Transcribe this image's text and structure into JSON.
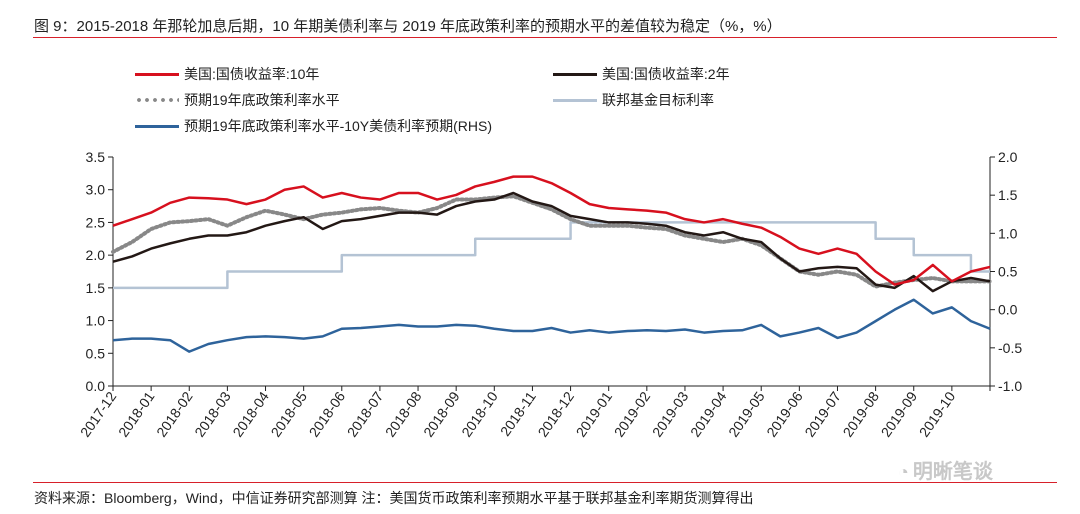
{
  "title": "图 9：2015-2018 年那轮加息后期，10 年期美债利率与 2019 年底政策利率的预期水平的差值较为稳定（%，%）",
  "source": "资料来源：Bloomberg，Wind，中信证券研究部测算  注：美国货币政策利率预期水平基于联邦基金利率期货测算得出",
  "watermark": "明晰笔谈",
  "chart_data": {
    "type": "line",
    "x_unit": "months since 2017-12",
    "xlim": [
      0,
      23
    ],
    "x_tick_labels": [
      "2017-12",
      "2018-01",
      "2018-02",
      "2018-03",
      "2018-04",
      "2018-05",
      "2018-06",
      "2018-07",
      "2018-08",
      "2018-09",
      "2018-10",
      "2018-11",
      "2018-12",
      "2019-01",
      "2019-02",
      "2019-03",
      "2019-04",
      "2019-05",
      "2019-06",
      "2019-07",
      "2019-08",
      "2019-09",
      "2019-10"
    ],
    "ylim_left": [
      0,
      3.5
    ],
    "ylim_right": [
      -1.0,
      2.0
    ],
    "y_ticks_left": [
      "0.0",
      "0.5",
      "1.0",
      "1.5",
      "2.0",
      "2.5",
      "3.0",
      "3.5"
    ],
    "y_ticks_right": [
      "-1.0",
      "-0.5",
      "0.0",
      "0.5",
      "1.0",
      "1.5",
      "2.0"
    ],
    "x": [
      0,
      0.5,
      1,
      1.5,
      2,
      2.5,
      3,
      3.5,
      4,
      4.5,
      5,
      5.5,
      6,
      6.5,
      7,
      7.5,
      8,
      8.5,
      9,
      9.5,
      10,
      10.5,
      11,
      11.5,
      12,
      12.5,
      13,
      13.5,
      14,
      14.5,
      15,
      15.5,
      16,
      16.5,
      17,
      17.5,
      18,
      18.5,
      19,
      19.5,
      20,
      20.5,
      21,
      21.5,
      22,
      22.5,
      23
    ],
    "series": [
      {
        "name": "美国:国债收益率:10年",
        "axis": "left",
        "color": "#d7101e",
        "style": "solid",
        "values": [
          2.45,
          2.55,
          2.65,
          2.8,
          2.88,
          2.87,
          2.85,
          2.78,
          2.85,
          3.0,
          3.05,
          2.88,
          2.95,
          2.88,
          2.85,
          2.95,
          2.95,
          2.85,
          2.92,
          3.05,
          3.12,
          3.2,
          3.2,
          3.1,
          2.95,
          2.78,
          2.72,
          2.7,
          2.68,
          2.65,
          2.55,
          2.5,
          2.55,
          2.48,
          2.42,
          2.28,
          2.1,
          2.02,
          2.1,
          2.02,
          1.75,
          1.55,
          1.62,
          1.85,
          1.6,
          1.75,
          1.82
        ]
      },
      {
        "name": "美国:国债收益率:2年",
        "axis": "left",
        "color": "#231815",
        "style": "solid",
        "values": [
          1.9,
          1.98,
          2.1,
          2.18,
          2.25,
          2.3,
          2.3,
          2.35,
          2.45,
          2.52,
          2.58,
          2.4,
          2.52,
          2.55,
          2.6,
          2.65,
          2.65,
          2.62,
          2.75,
          2.82,
          2.85,
          2.95,
          2.82,
          2.75,
          2.6,
          2.55,
          2.5,
          2.5,
          2.48,
          2.45,
          2.35,
          2.3,
          2.35,
          2.25,
          2.2,
          1.95,
          1.75,
          1.8,
          1.82,
          1.8,
          1.55,
          1.5,
          1.68,
          1.45,
          1.6,
          1.65,
          1.6
        ]
      },
      {
        "name": "预期19年底政策利率水平",
        "axis": "left",
        "color": "#888888",
        "style": "dotted",
        "values": [
          2.05,
          2.2,
          2.4,
          2.5,
          2.52,
          2.55,
          2.45,
          2.58,
          2.68,
          2.62,
          2.55,
          2.62,
          2.65,
          2.7,
          2.72,
          2.68,
          2.65,
          2.72,
          2.85,
          2.85,
          2.88,
          2.9,
          2.8,
          2.7,
          2.55,
          2.45,
          2.45,
          2.45,
          2.42,
          2.4,
          2.3,
          2.25,
          2.2,
          2.25,
          2.15,
          1.95,
          1.75,
          1.7,
          1.75,
          1.7,
          1.52,
          1.58,
          1.62,
          1.65,
          1.6,
          1.6,
          1.6
        ]
      },
      {
        "name": "联邦基金目标利率",
        "axis": "left",
        "color": "#b4c3d4",
        "style": "step",
        "values": [
          1.5,
          1.5,
          1.5,
          1.5,
          1.5,
          1.5,
          1.75,
          1.75,
          1.75,
          1.75,
          1.75,
          1.75,
          2.0,
          2.0,
          2.0,
          2.0,
          2.0,
          2.0,
          2.0,
          2.25,
          2.25,
          2.25,
          2.25,
          2.25,
          2.5,
          2.5,
          2.5,
          2.5,
          2.5,
          2.5,
          2.5,
          2.5,
          2.5,
          2.5,
          2.5,
          2.5,
          2.5,
          2.5,
          2.5,
          2.5,
          2.25,
          2.25,
          2.0,
          2.0,
          2.0,
          1.75,
          1.75
        ]
      },
      {
        "name": "预期19年底政策利率水平-10Y美债利率预期(RHS)",
        "axis": "right",
        "color": "#2e639b",
        "style": "solid",
        "values": [
          -0.4,
          -0.38,
          -0.38,
          -0.4,
          -0.55,
          -0.45,
          -0.4,
          -0.36,
          -0.35,
          -0.36,
          -0.38,
          -0.35,
          -0.25,
          -0.24,
          -0.22,
          -0.2,
          -0.22,
          -0.22,
          -0.2,
          -0.21,
          -0.25,
          -0.28,
          -0.28,
          -0.24,
          -0.3,
          -0.27,
          -0.3,
          -0.28,
          -0.27,
          -0.28,
          -0.26,
          -0.3,
          -0.28,
          -0.27,
          -0.2,
          -0.35,
          -0.3,
          -0.24,
          -0.37,
          -0.3,
          -0.15,
          0.0,
          0.13,
          -0.05,
          0.03,
          -0.15,
          -0.25
        ]
      }
    ],
    "legend_placement": "top"
  }
}
